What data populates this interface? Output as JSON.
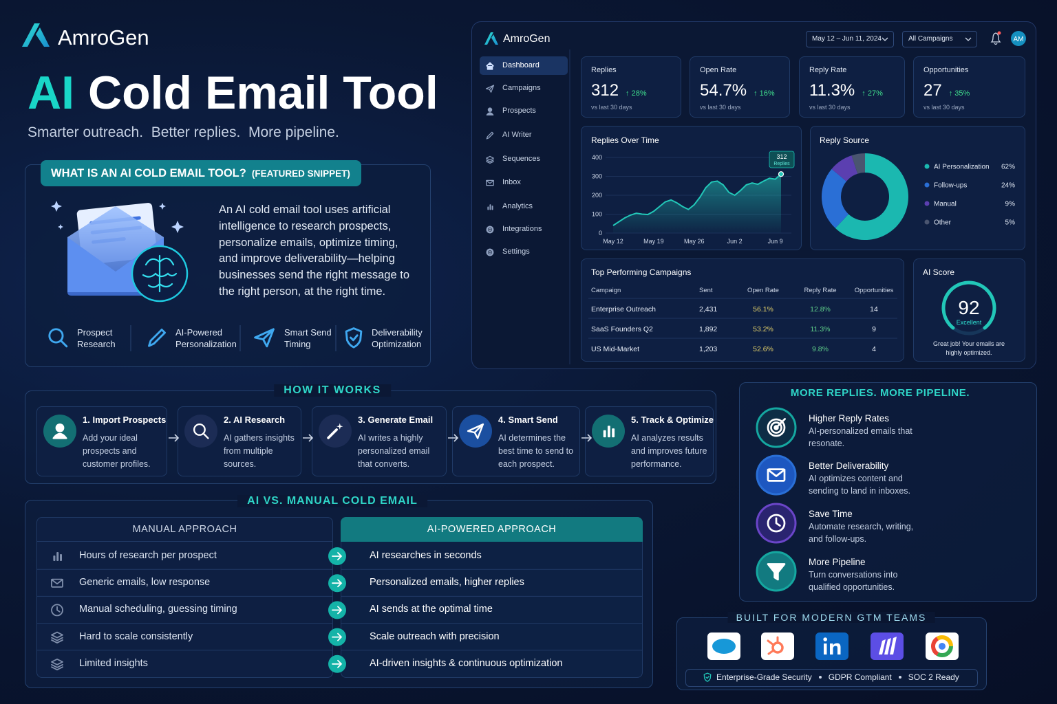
{
  "brand": "AmroGen",
  "hero": {
    "title_accent": "AI",
    "title_rest": "Cold Email Tool",
    "tagline": "Smarter outreach.  Better replies.  More pipeline."
  },
  "snippet": {
    "heading": "WHAT IS AN AI COLD EMAIL TOOL?",
    "tag": "(FEATURED SNIPPET)",
    "body": "An AI cold email tool uses artificial intelligence to research prospects, personalize emails, optimize timing, and improve deliverability—helping businesses send the right message to the right person, at the right time.",
    "features": [
      "Prospect Research",
      "AI-Powered Personalization",
      "Smart Send Timing",
      "Deliverability Optimization"
    ]
  },
  "dashboard": {
    "brand": "AmroGen",
    "date_range": "May 12 – Jun 11, 2024",
    "campaign_filter": "All Campaigns",
    "avatar": "AM",
    "nav": [
      "Dashboard",
      "Campaigns",
      "Prospects",
      "AI Writer",
      "Sequences",
      "Inbox",
      "Analytics",
      "Integrations",
      "Settings"
    ],
    "kpis": [
      {
        "label": "Replies",
        "value": "312",
        "change": "↑ 28%",
        "note": "vs last 30 days"
      },
      {
        "label": "Open Rate",
        "value": "54.7%",
        "change": "↑ 16%",
        "note": "vs last 30 days"
      },
      {
        "label": "Reply Rate",
        "value": "11.3%",
        "change": "↑ 27%",
        "note": "vs last 30 days"
      },
      {
        "label": "Opportunities",
        "value": "27",
        "change": "↑ 35%",
        "note": "vs last 30 days"
      }
    ],
    "replies_chart": {
      "type": "line",
      "title": "Replies Over Time",
      "color": "#22c7b8",
      "x": [
        "May 12",
        null,
        null,
        null,
        null,
        null,
        null,
        "May 19",
        null,
        null,
        null,
        null,
        null,
        null,
        "May 26",
        null,
        null,
        null,
        null,
        null,
        null,
        "Jun 2",
        null,
        null,
        null,
        null,
        null,
        null,
        "Jun 9",
        null
      ],
      "values": [
        40,
        60,
        80,
        95,
        105,
        100,
        98,
        115,
        140,
        165,
        175,
        160,
        140,
        125,
        150,
        190,
        240,
        270,
        275,
        255,
        215,
        200,
        225,
        255,
        265,
        258,
        275,
        290,
        285,
        312
      ],
      "ylim": [
        0,
        400
      ],
      "yticks": [
        0,
        100,
        200,
        300,
        400
      ],
      "tooltip": {
        "value": 312,
        "label": "Replies"
      }
    },
    "reply_source": {
      "type": "pie",
      "title": "Reply Source",
      "categories": [
        "AI Personalization",
        "Follow-ups",
        "Manual",
        "Other"
      ],
      "values": [
        62,
        24,
        9,
        5
      ],
      "value_labels": [
        "62%",
        "24%",
        "9%",
        "5%"
      ],
      "colors": [
        "#1bb8b0",
        "#2a6fd6",
        "#5b3fb0",
        "#4a5570"
      ]
    },
    "campaigns": {
      "title": "Top Performing Campaigns",
      "columns": [
        "Campaign",
        "Sent",
        "Open Rate",
        "Reply Rate",
        "Opportunities"
      ],
      "rows": [
        [
          "Enterprise Outreach",
          "2,431",
          "56.1%",
          "12.8%",
          "14"
        ],
        [
          "SaaS Founders Q2",
          "1,892",
          "53.2%",
          "11.3%",
          "9"
        ],
        [
          "US Mid-Market",
          "1,203",
          "52.6%",
          "9.8%",
          "4"
        ]
      ]
    },
    "ai_score": {
      "title": "AI Score",
      "value": "92",
      "rating": "Excellent",
      "note": "Great job! Your emails are highly optimized."
    }
  },
  "how_it_works": {
    "heading": "HOW IT WORKS",
    "steps": [
      {
        "title": "1. Import Prospects",
        "text": "Add your ideal prospects and customer profiles."
      },
      {
        "title": "2. AI Research",
        "text": "AI gathers insights from multiple sources."
      },
      {
        "title": "3. Generate Email",
        "text": "AI writes a highly personalized email that converts."
      },
      {
        "title": "4. Smart Send",
        "text": "AI determines the best time to send to each prospect."
      },
      {
        "title": "5. Track & Optimize",
        "text": "AI analyzes results and improves future performance."
      }
    ]
  },
  "comparison": {
    "heading": "AI VS. MANUAL COLD EMAIL",
    "manual_heading": "MANUAL APPROACH",
    "ai_heading": "AI-POWERED APPROACH",
    "rows": [
      {
        "manual": "Hours of research per prospect",
        "ai": "AI researches in seconds"
      },
      {
        "manual": "Generic emails, low response",
        "ai": "Personalized emails, higher replies"
      },
      {
        "manual": "Manual scheduling, guessing timing",
        "ai": "AI sends at the optimal time"
      },
      {
        "manual": "Hard to scale consistently",
        "ai": "Scale outreach with precision"
      },
      {
        "manual": "Limited insights",
        "ai": "AI-driven insights & continuous optimization"
      }
    ]
  },
  "benefits": {
    "heading": "MORE REPLIES. MORE PIPELINE.",
    "items": [
      {
        "title": "Higher Reply Rates",
        "text": "AI-personalized emails that resonate."
      },
      {
        "title": "Better Deliverability",
        "text": "AI optimizes content and sending to land in inboxes."
      },
      {
        "title": "Save Time",
        "text": "Automate research, writing, and follow-ups."
      },
      {
        "title": "More Pipeline",
        "text": "Turn conversations into qualified opportunities."
      }
    ]
  },
  "built_for": {
    "heading": "BUILT FOR MODERN GTM TEAMS",
    "badges": [
      "Enterprise-Grade Security",
      "GDPR Compliant",
      "SOC 2 Ready"
    ]
  }
}
